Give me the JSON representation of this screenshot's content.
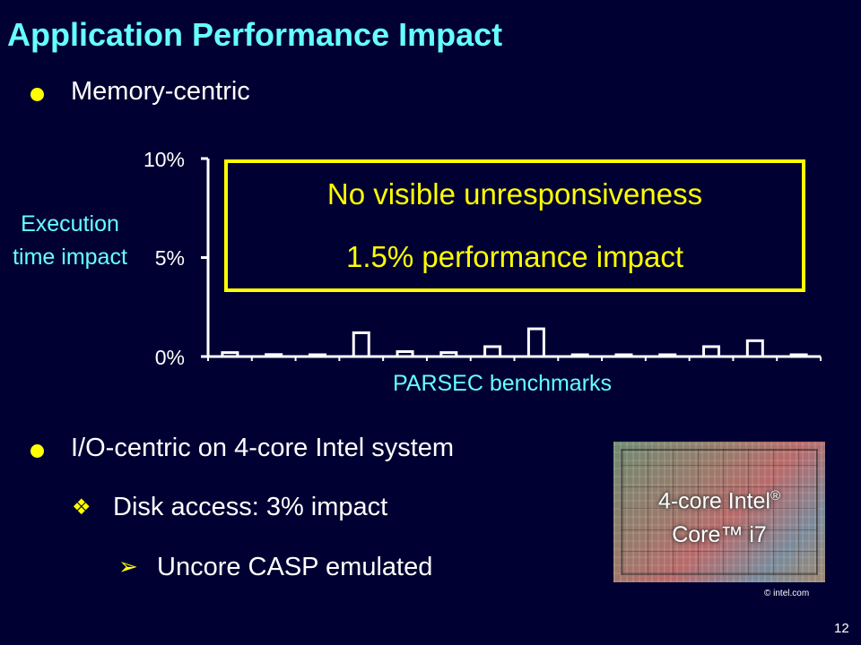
{
  "slide": {
    "title": "Application Performance Impact",
    "page_number": "12",
    "bullet1": "Memory-centric",
    "bullet2": "I/O-centric on 4-core Intel system",
    "sub_bullet": "Disk access: 3% impact",
    "sub_sub_bullet": "Uncore CASP emulated",
    "callout": {
      "line1": "No visible unresponsiveness",
      "line2": "1.5% performance impact"
    },
    "chip_image": {
      "line1": "4-core Intel",
      "reg_mark": "®",
      "line2": "Core™ i7",
      "credit": "© intel.com"
    }
  },
  "chart_data": {
    "type": "bar",
    "ylabel": "Execution time impact",
    "xlabel": "PARSEC benchmarks",
    "ylim": [
      0,
      10
    ],
    "yticks": [
      "0%",
      "5%",
      "10%"
    ],
    "values": [
      0.2,
      0.1,
      0.05,
      1.2,
      0.25,
      0.2,
      0.5,
      1.4,
      0.05,
      0.05,
      0.05,
      0.5,
      0.8,
      0.05
    ],
    "colors": {
      "bar_fill": "#000033",
      "bar_stroke": "#ffffff",
      "axis": "#ffffff"
    },
    "grid": false
  }
}
